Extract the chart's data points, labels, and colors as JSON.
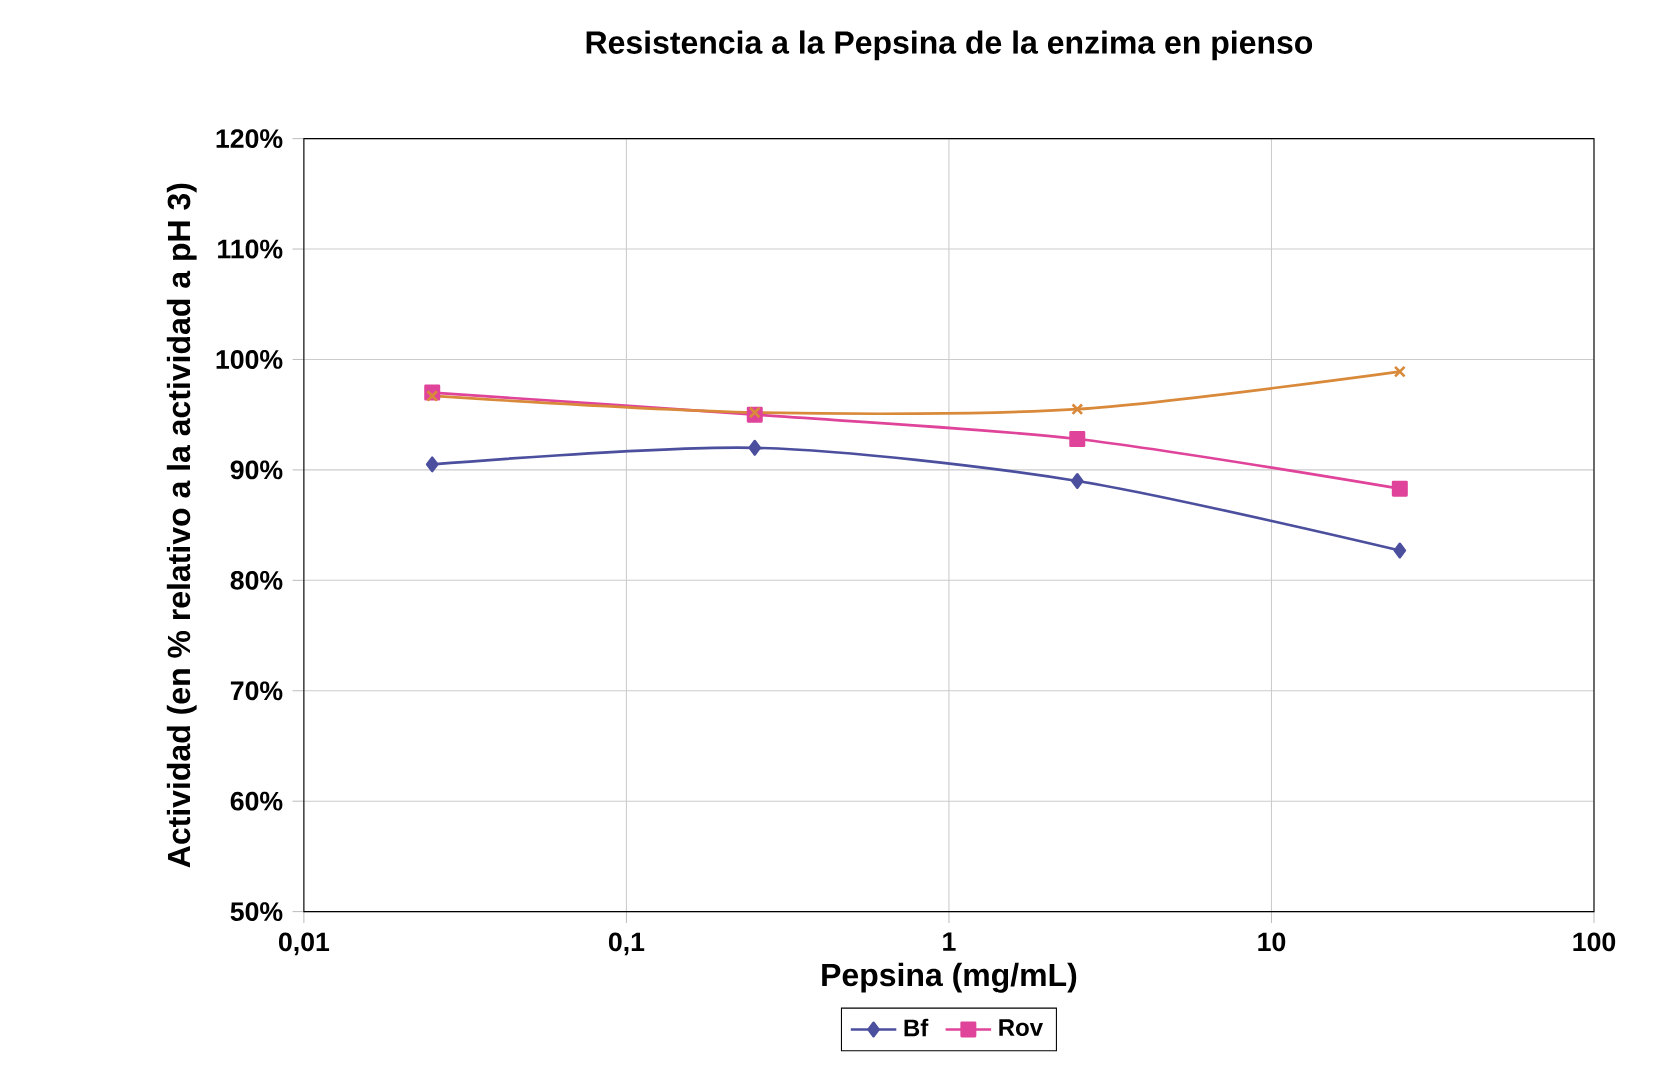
{
  "chart_data": {
    "type": "line",
    "title": "Resistencia a la Pepsina de la enzima en pienso",
    "xlabel": "Pepsina (mg/mL)",
    "ylabel": "Actividad (en % relativo a la actividad a pH 3)",
    "x": [
      0.025,
      0.25,
      2.5,
      25
    ],
    "series": [
      {
        "name": "Bf",
        "color": "#4b4f9e",
        "marker": "diamond",
        "values": [
          90.5,
          92,
          89,
          82.7
        ]
      },
      {
        "name": "Rov",
        "color": "#e0449a",
        "marker": "square",
        "values": [
          97,
          95,
          92.8,
          88.3
        ]
      },
      {
        "color": "#d9893a",
        "marker": "cross",
        "values": [
          96.7,
          95.2,
          95.5,
          98.9
        ]
      }
    ],
    "log": "x",
    "xlim": [
      0.01,
      100
    ],
    "xticks": [
      {
        "value": 0.01,
        "label": "0,01"
      },
      {
        "value": 0.1,
        "label": "0,1"
      },
      1,
      10,
      100
    ],
    "ylim": [
      50,
      120
    ],
    "yticks": [
      {
        "value": 50,
        "label": "50%"
      },
      {
        "value": 60,
        "label": "60%"
      },
      {
        "value": 70,
        "label": "70%"
      },
      {
        "value": 80,
        "label": "80%"
      },
      {
        "value": 90,
        "label": "90%"
      },
      {
        "value": 100,
        "label": "100%"
      },
      {
        "value": 110,
        "label": "110%"
      },
      {
        "value": 120,
        "label": "120%"
      }
    ],
    "grid": true,
    "legend": "bottom",
    "line_style": "solid"
  }
}
